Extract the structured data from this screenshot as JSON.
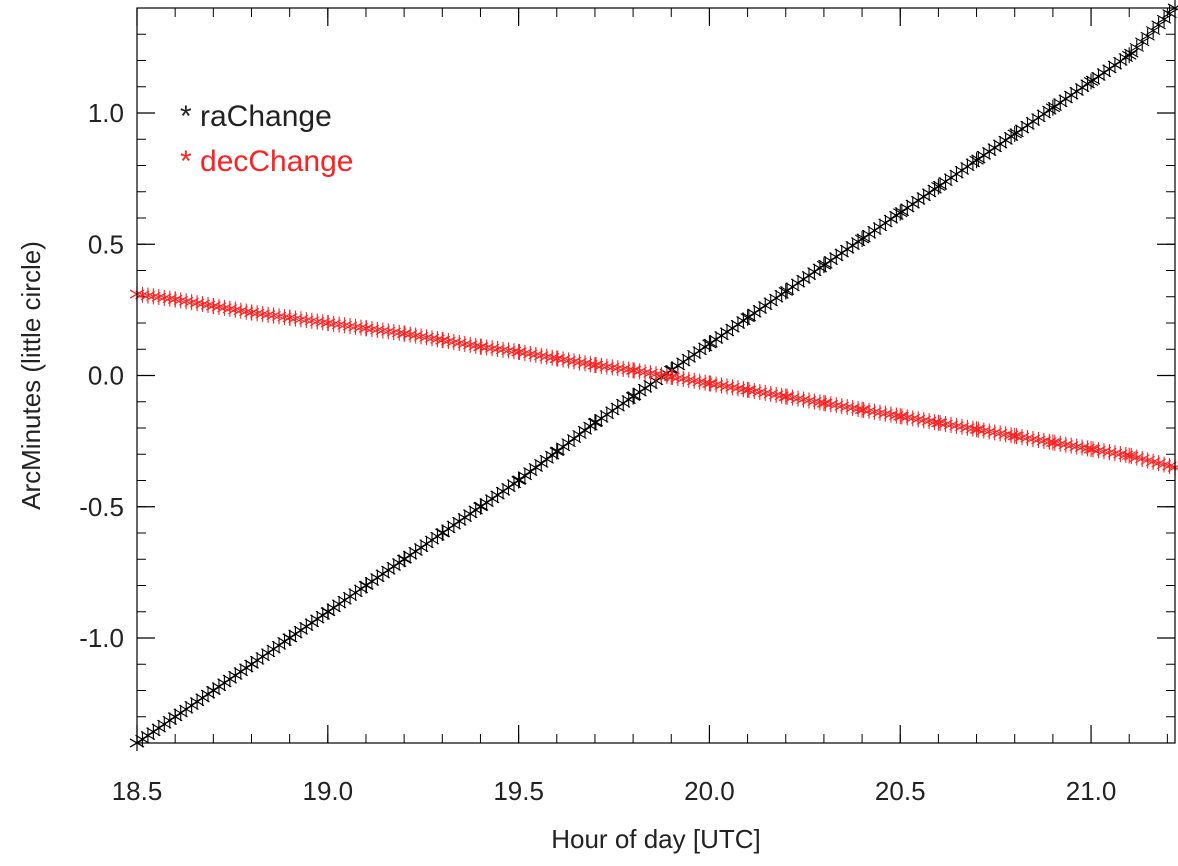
{
  "chart_data": {
    "type": "scatter",
    "title": "",
    "xlabel": "Hour of day [UTC]",
    "ylabel": "ArcMinutes (little circle)",
    "xlim": [
      18.5,
      21.22
    ],
    "ylim": [
      -1.4,
      1.4
    ],
    "x_ticks": [
      18.5,
      19.0,
      19.5,
      20.0,
      20.5,
      21.0
    ],
    "x_tick_labels": [
      "18.5",
      "19.0",
      "19.5",
      "20.0",
      "20.5",
      "21.0"
    ],
    "y_ticks": [
      -1.0,
      -0.5,
      0.0,
      0.5,
      1.0
    ],
    "y_tick_labels": [
      "-1.0",
      "-0.5",
      "0.0",
      "0.5",
      "1.0"
    ],
    "x_minor_step": 0.1,
    "y_minor_step": 0.1,
    "grid": false,
    "legend_position": "top-left",
    "marker": "asterisk",
    "series": [
      {
        "name": "raChange",
        "legend_label": "* raChange",
        "color": "#000000",
        "x": [
          18.5,
          18.6,
          18.7,
          18.8,
          18.9,
          19.0,
          19.1,
          19.2,
          19.3,
          19.4,
          19.5,
          19.6,
          19.7,
          19.8,
          19.9,
          20.0,
          20.1,
          20.2,
          20.3,
          20.4,
          20.5,
          20.6,
          20.7,
          20.8,
          20.9,
          21.0,
          21.1,
          21.22
        ],
        "y": [
          -1.4,
          -1.3,
          -1.2,
          -1.1,
          -1.0,
          -0.9,
          -0.8,
          -0.7,
          -0.6,
          -0.5,
          -0.4,
          -0.29,
          -0.18,
          -0.08,
          0.02,
          0.12,
          0.22,
          0.32,
          0.42,
          0.52,
          0.62,
          0.72,
          0.82,
          0.92,
          1.02,
          1.12,
          1.22,
          1.4
        ]
      },
      {
        "name": "decChange",
        "legend_label": "* decChange",
        "color": "#ff2020",
        "x": [
          18.5,
          18.6,
          18.7,
          18.8,
          18.9,
          19.0,
          19.1,
          19.2,
          19.3,
          19.4,
          19.5,
          19.6,
          19.7,
          19.8,
          19.9,
          20.0,
          20.1,
          20.2,
          20.3,
          20.4,
          20.5,
          20.6,
          20.7,
          20.8,
          20.9,
          21.0,
          21.1,
          21.22
        ],
        "y": [
          0.31,
          0.29,
          0.265,
          0.24,
          0.22,
          0.2,
          0.18,
          0.16,
          0.135,
          0.11,
          0.09,
          0.065,
          0.04,
          0.02,
          -0.005,
          -0.03,
          -0.055,
          -0.08,
          -0.105,
          -0.13,
          -0.155,
          -0.18,
          -0.205,
          -0.23,
          -0.255,
          -0.28,
          -0.305,
          -0.35
        ]
      }
    ]
  }
}
